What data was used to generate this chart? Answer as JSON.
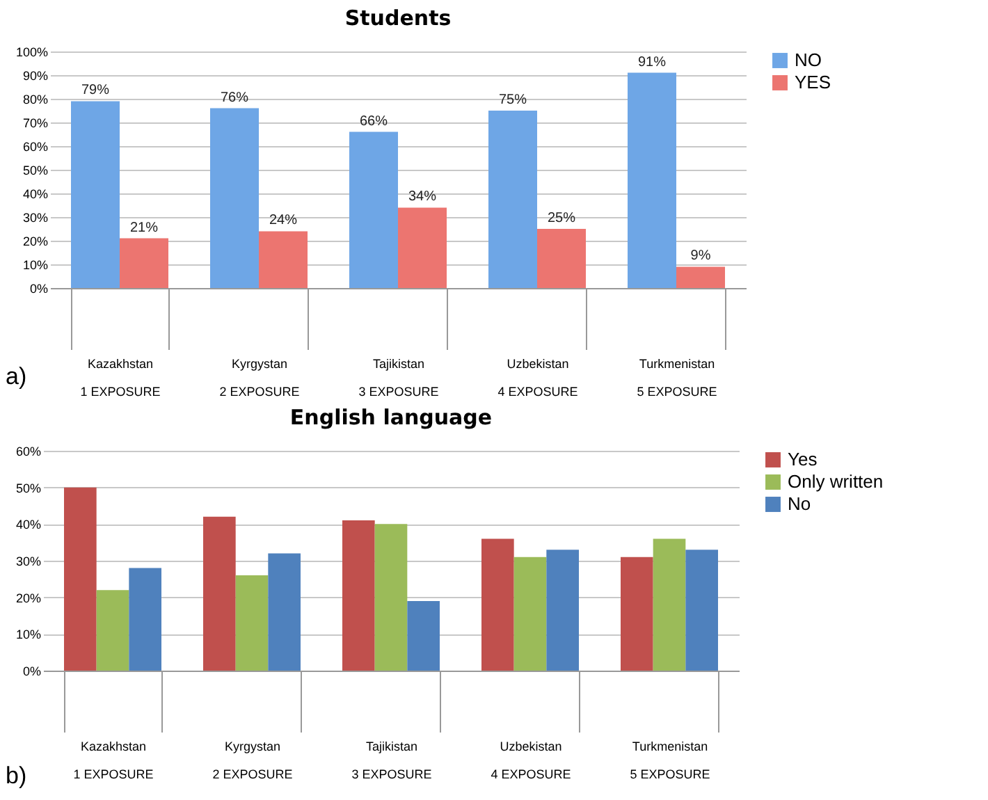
{
  "chart_data": [
    {
      "type": "bar",
      "title": "Students",
      "categories": [
        "Kazakhstan\n1 EXPOSURE",
        "Kyrgystan\n2 EXPOSURE",
        "Tajikistan\n3 EXPOSURE",
        "Uzbekistan\n4 EXPOSURE",
        "Turkmenistan\n5 EXPOSURE"
      ],
      "series": [
        {
          "name": "NO",
          "color": "#6ea6e6",
          "values": [
            79,
            76,
            66,
            75,
            91
          ],
          "value_labels": [
            "79%",
            "76%",
            "66%",
            "75%",
            "91%"
          ]
        },
        {
          "name": "YES",
          "color": "#ec7570",
          "values": [
            21,
            24,
            34,
            25,
            9
          ],
          "value_labels": [
            "21%",
            "24%",
            "34%",
            "25%",
            "9%"
          ]
        }
      ],
      "ylim": [
        0,
        100
      ],
      "yticks": [
        {
          "value": 0,
          "label": "0%"
        },
        {
          "value": 10,
          "label": "10%"
        },
        {
          "value": 20,
          "label": "20%"
        },
        {
          "value": 30,
          "label": "30%"
        },
        {
          "value": 40,
          "label": "40%"
        },
        {
          "value": 50,
          "label": "50%"
        },
        {
          "value": 60,
          "label": "60%"
        },
        {
          "value": 70,
          "label": "70%"
        },
        {
          "value": 80,
          "label": "80%"
        },
        {
          "value": 90,
          "label": "90%"
        },
        {
          "value": 100,
          "label": "100%"
        }
      ],
      "grid": "y",
      "legend": "right",
      "annotations": [
        "a)"
      ]
    },
    {
      "type": "bar",
      "title": "English language",
      "categories": [
        "Kazakhstan\n1 EXPOSURE",
        "Kyrgystan\n2 EXPOSURE",
        "Tajikistan\n3 EXPOSURE",
        "Uzbekistan\n4 EXPOSURE",
        "Turkmenistan\n5 EXPOSURE"
      ],
      "series": [
        {
          "name": "Yes",
          "color": "#c0504d",
          "values": [
            50,
            42,
            41,
            36,
            31
          ]
        },
        {
          "name": "Only written",
          "color": "#9bbb59",
          "values": [
            22,
            26,
            40,
            31,
            36
          ]
        },
        {
          "name": "No",
          "color": "#4f81bd",
          "values": [
            28,
            32,
            19,
            33,
            33
          ]
        }
      ],
      "ylim": [
        0,
        60
      ],
      "yticks": [
        {
          "value": 0,
          "label": "0%"
        },
        {
          "value": 10,
          "label": "10%"
        },
        {
          "value": 20,
          "label": "20%"
        },
        {
          "value": 30,
          "label": "30%"
        },
        {
          "value": 40,
          "label": "40%"
        },
        {
          "value": 50,
          "label": "50%"
        },
        {
          "value": 60,
          "label": "60%"
        }
      ],
      "grid": "y",
      "legend": "right",
      "annotations": [
        "b)"
      ]
    }
  ]
}
